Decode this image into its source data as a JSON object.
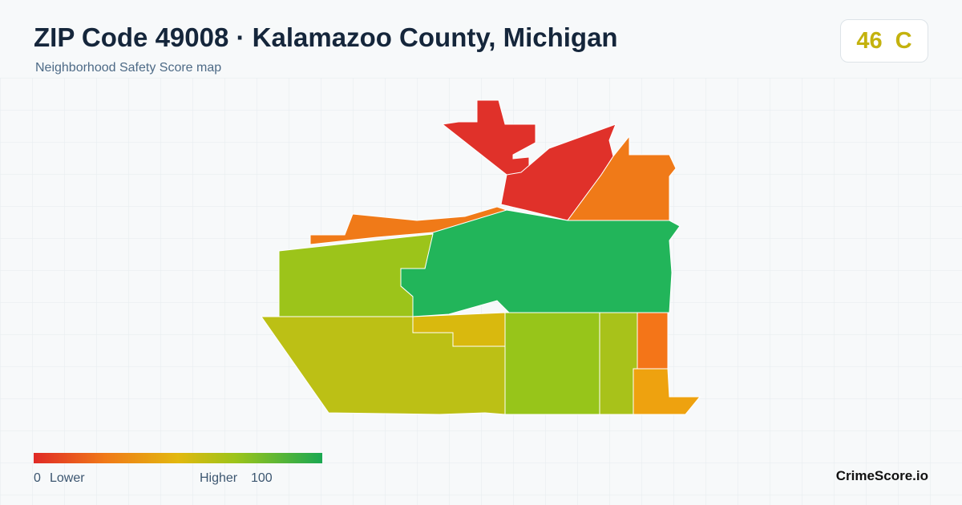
{
  "header": {
    "title": "ZIP Code 49008 · Kalamazoo County, Michigan",
    "subtitle": "Neighborhood Safety Score map"
  },
  "badge": {
    "score": 46,
    "grade": "C"
  },
  "legend": {
    "min": 0,
    "min_label": "Lower",
    "max_label": "Higher",
    "max": 100
  },
  "brand": "CrimeScore.io"
}
